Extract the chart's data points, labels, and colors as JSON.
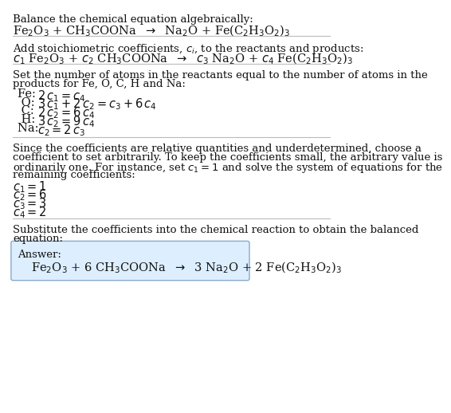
{
  "background_color": "#ffffff",
  "title_text": "Balance the chemical equation algebraically:",
  "equation_line1": "Fe$_2$O$_3$ + CH$_3$COONa  $\\rightarrow$  Na$_2$O + Fe(C$_2$H$_3$O$_2$)$_3$",
  "section2_header": "Add stoichiometric coefficients, $c_i$, to the reactants and products:",
  "equation_line2": "$c_1$ Fe$_2$O$_3$ + $c_2$ CH$_3$COONa  $\\rightarrow$  $c_3$ Na$_2$O + $c_4$ Fe(C$_2$H$_3$O$_2$)$_3$",
  "section3_header1": "Set the number of atoms in the reactants equal to the number of atoms in the",
  "section3_header2": "products for Fe, O, C, H and Na:",
  "atom_equations": [
    [
      "Fe: ",
      "$2\\,c_1 = c_4$"
    ],
    [
      " O: ",
      "$3\\,c_1 + 2\\,c_2 = c_3 + 6\\,c_4$"
    ],
    [
      " C: ",
      "$2\\,c_2 = 6\\,c_4$"
    ],
    [
      " H: ",
      "$3\\,c_2 = 9\\,c_4$"
    ],
    [
      "Na: ",
      "$c_2 = 2\\,c_3$"
    ]
  ],
  "section4_line1": "Since the coefficients are relative quantities and underdetermined, choose a",
  "section4_line2": "coefficient to set arbitrarily. To keep the coefficients small, the arbitrary value is",
  "section4_line3": "ordinarily one. For instance, set $c_1 = 1$ and solve the system of equations for the",
  "section4_line4": "remaining coefficients:",
  "coeff_values": [
    "$c_1 = 1$",
    "$c_2 = 6$",
    "$c_3 = 3$",
    "$c_4 = 2$"
  ],
  "section5_line1": "Substitute the coefficients into the chemical reaction to obtain the balanced",
  "section5_line2": "equation:",
  "answer_label": "Answer:",
  "answer_equation": "Fe$_2$O$_3$ + 6 CH$_3$COONa  $\\rightarrow$  3 Na$_2$O + 2 Fe(C$_2$H$_3$O$_2$)$_3$",
  "answer_box_facecolor": "#ddeeff",
  "answer_box_edgecolor": "#88aacc",
  "font_size_body": 9.5,
  "font_size_eq": 10.5,
  "text_color": "#111111",
  "line_color": "#bbbbbb"
}
